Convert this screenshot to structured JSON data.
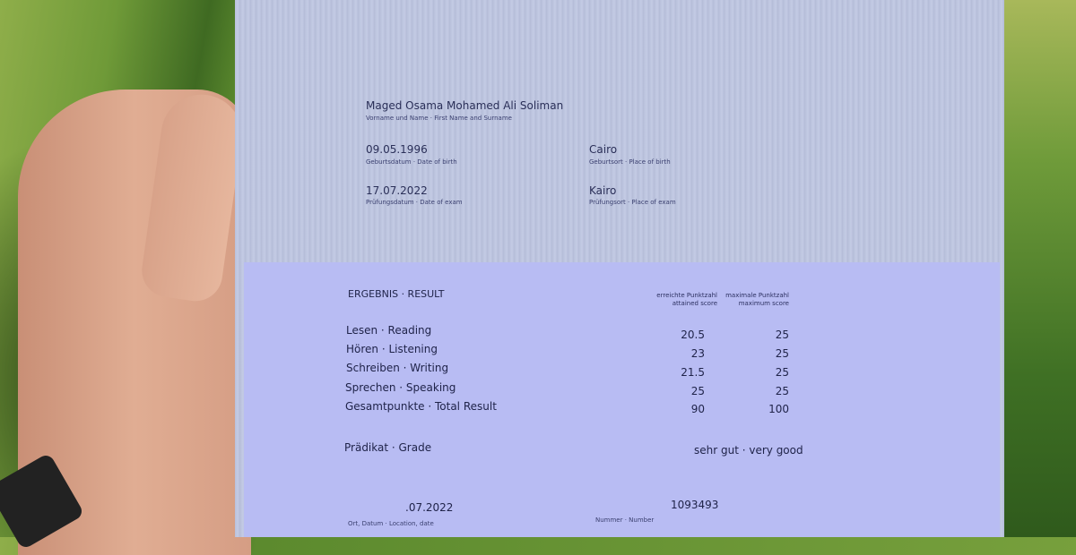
{
  "personal": {
    "name": "Maged Osama Mohamed Ali Soliman",
    "name_label": "Vorname und Name · First Name and Surname",
    "dob": "09.05.1996",
    "dob_label": "Geburtsdatum · Date of birth",
    "pob": "Cairo",
    "pob_label": "Geburtsort · Place of birth",
    "exam_date": "17.07.2022",
    "exam_date_label": "Prüfungsdatum · Date of exam",
    "exam_place": "Kairo",
    "exam_place_label": "Prüfungsort · Place of exam"
  },
  "result": {
    "title": "ERGEBNIS · RESULT",
    "attained_header": [
      "erreichte Punktzahl",
      "attained score"
    ],
    "max_header": [
      "maximale Punktzahl",
      "maximum score"
    ],
    "rows": [
      {
        "label": "Lesen · Reading",
        "score": "20.5",
        "max": "25"
      },
      {
        "label": "Hören · Listening",
        "score": "23",
        "max": "25"
      },
      {
        "label": "Schreiben · Writing",
        "score": "21.5",
        "max": "25"
      },
      {
        "label": "Sprechen · Speaking",
        "score": "25",
        "max": "25"
      },
      {
        "label": "Gesamtpunkte · Total Result",
        "score": "90",
        "max": "100"
      }
    ],
    "grade_label": "Prädikat · Grade",
    "grade_value": "sehr gut · very good"
  },
  "footer": {
    "date": ".07.2022",
    "date_label": "Ort, Datum · Location, date",
    "number": "1093493",
    "number_label": "Nummer · Number"
  }
}
